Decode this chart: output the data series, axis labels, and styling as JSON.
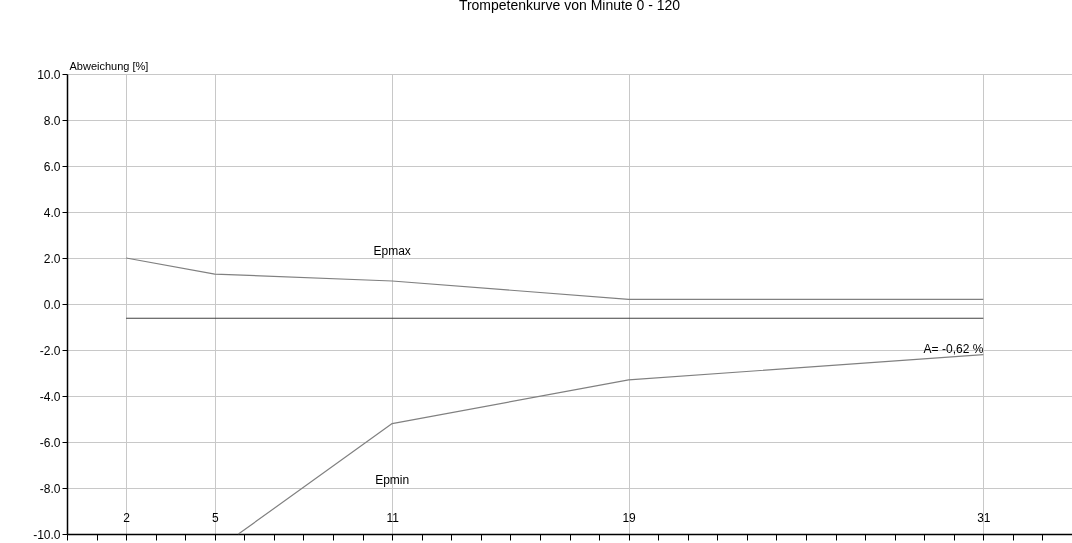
{
  "chart_data": {
    "type": "line",
    "title": "Trompetenkurve von Minute 0 - 120",
    "ylabel": "Abweichung  [%]",
    "series": [
      {
        "name": "Epmax",
        "color": "#808080",
        "x": [
          2,
          5,
          11,
          19,
          31
        ],
        "values": [
          2.0,
          1.3,
          1.0,
          0.2,
          0.2
        ]
      },
      {
        "color": "#404040",
        "x": [
          2,
          31
        ],
        "values": [
          -0.62,
          -0.62
        ]
      },
      {
        "name": "Epmin",
        "color": "#808080",
        "x": [
          5.8,
          11,
          19,
          31
        ],
        "values": [
          -10,
          -5.2,
          -3.3,
          -2.2
        ]
      }
    ],
    "annotations": [
      "A= -0,62 %"
    ],
    "xlim": [
      0,
      34
    ],
    "xticks": [
      {
        "value": 0,
        "label": null
      },
      {
        "value": 1,
        "label": null
      },
      2,
      {
        "value": 3,
        "label": null
      },
      {
        "value": 4,
        "label": null
      },
      5,
      {
        "value": 6,
        "label": null
      },
      {
        "value": 7,
        "label": null
      },
      {
        "value": 8,
        "label": null
      },
      {
        "value": 9,
        "label": null
      },
      {
        "value": 10,
        "label": null
      },
      11,
      {
        "value": 12,
        "label": null
      },
      {
        "value": 13,
        "label": null
      },
      {
        "value": 14,
        "label": null
      },
      {
        "value": 15,
        "label": null
      },
      {
        "value": 16,
        "label": null
      },
      {
        "value": 17,
        "label": null
      },
      {
        "value": 18,
        "label": null
      },
      19,
      {
        "value": 20,
        "label": null
      },
      {
        "value": 21,
        "label": null
      },
      {
        "value": 22,
        "label": null
      },
      {
        "value": 23,
        "label": null
      },
      {
        "value": 24,
        "label": null
      },
      {
        "value": 25,
        "label": null
      },
      {
        "value": 26,
        "label": null
      },
      {
        "value": 27,
        "label": null
      },
      {
        "value": 28,
        "label": null
      },
      {
        "value": 29,
        "label": null
      },
      {
        "value": 30,
        "label": null
      },
      31,
      {
        "value": 32,
        "label": null
      },
      {
        "value": 33,
        "label": null
      }
    ],
    "ylim": [
      -10,
      10
    ],
    "yticks": [
      {
        "value": -10,
        "label": "-10.0"
      },
      {
        "value": -8,
        "label": "-8.0"
      },
      {
        "value": -6,
        "label": "-6.0"
      },
      {
        "value": -4,
        "label": "-4.0"
      },
      {
        "value": -2,
        "label": "-2.0"
      },
      {
        "value": 0,
        "label": "0.0"
      },
      {
        "value": 2,
        "label": "2.0"
      },
      {
        "value": 4,
        "label": "4.0"
      },
      {
        "value": 6,
        "label": "6.0"
      },
      {
        "value": 8,
        "label": "8.0"
      },
      {
        "value": 10,
        "label": "10.0"
      }
    ],
    "grid": true,
    "legend": false,
    "marker": "none",
    "line_style": "solid"
  }
}
